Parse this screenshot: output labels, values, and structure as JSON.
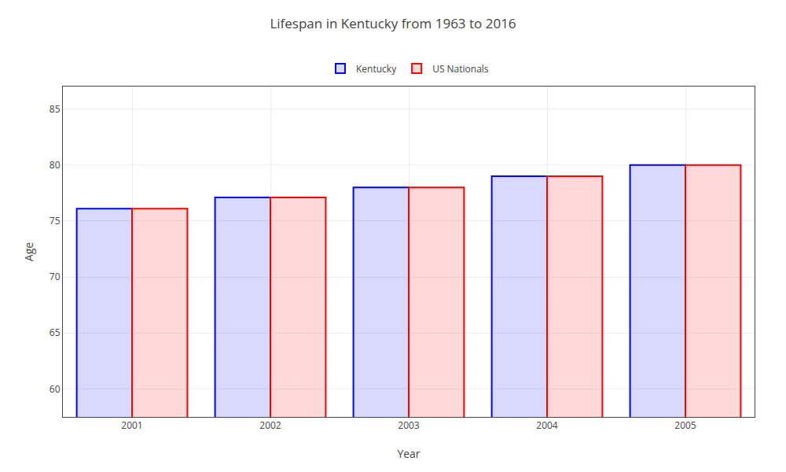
{
  "chart_data": {
    "type": "bar",
    "title": "Lifespan in Kentucky from 1963 to 2016",
    "x_label": "Year",
    "y_label": "Age",
    "categories": [
      "2001",
      "2002",
      "2003",
      "2004",
      "2005"
    ],
    "series": [
      {
        "name": "Kentucky",
        "color": "#0000ff",
        "values": [
          76.1,
          77.1,
          78.0,
          79.0,
          80.0
        ]
      },
      {
        "name": "US Nationals",
        "color": "#ff0000",
        "values": [
          76.1,
          77.1,
          78.0,
          79.0,
          80.0
        ]
      }
    ],
    "ylim": [
      57.5,
      87
    ],
    "yticks": [
      60,
      65,
      70,
      75,
      80,
      85
    ],
    "grid": true,
    "legend": "top"
  }
}
